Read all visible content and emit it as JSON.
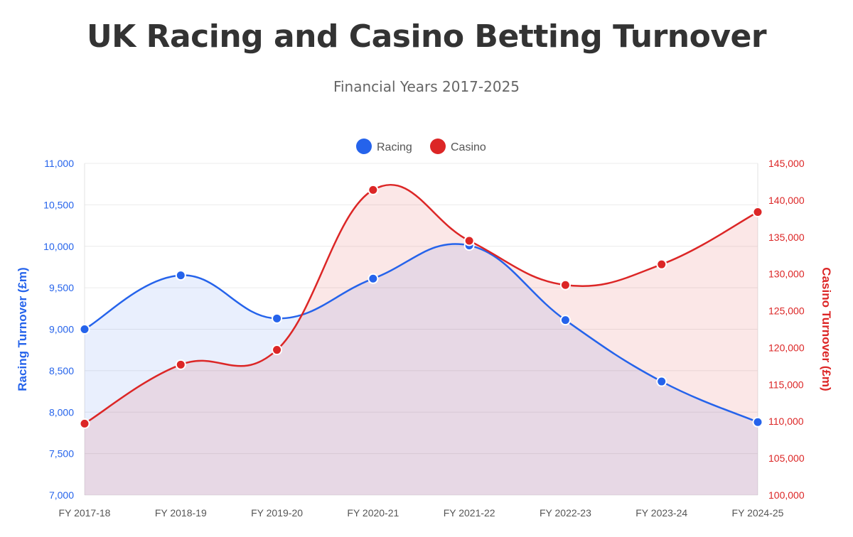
{
  "title": "UK Racing and Casino Betting Turnover",
  "subtitle": "Financial Years 2017-2025",
  "chart_data": {
    "type": "area",
    "categories": [
      "FY 2017-18",
      "FY 2018-19",
      "FY 2019-20",
      "FY 2020-21",
      "FY 2021-22",
      "FY 2022-23",
      "FY 2023-24",
      "FY 2024-25"
    ],
    "series": [
      {
        "name": "Racing",
        "axis": "left",
        "color": "#2563eb",
        "values": [
          9000,
          9650,
          9130,
          9610,
          10010,
          9110,
          8370,
          7880
        ]
      },
      {
        "name": "Casino",
        "axis": "right",
        "color": "#dc2626",
        "values": [
          109700,
          117700,
          119700,
          141400,
          134500,
          128500,
          131300,
          138400
        ]
      }
    ],
    "y_left": {
      "label": "Racing Turnover (£m)",
      "range": [
        7000,
        11000
      ],
      "ticks": [
        "7,000",
        "7,500",
        "8,000",
        "8,500",
        "9,000",
        "9,500",
        "10,000",
        "10,500",
        "11,000"
      ],
      "color": "#2563eb"
    },
    "y_right": {
      "label": "Casino Turnover (£m)",
      "range": [
        100000,
        145000
      ],
      "ticks": [
        "100,000",
        "105,000",
        "110,000",
        "115,000",
        "120,000",
        "125,000",
        "130,000",
        "135,000",
        "140,000",
        "145,000"
      ],
      "color": "#dc2626"
    },
    "legend": "top-center",
    "grid": true
  }
}
